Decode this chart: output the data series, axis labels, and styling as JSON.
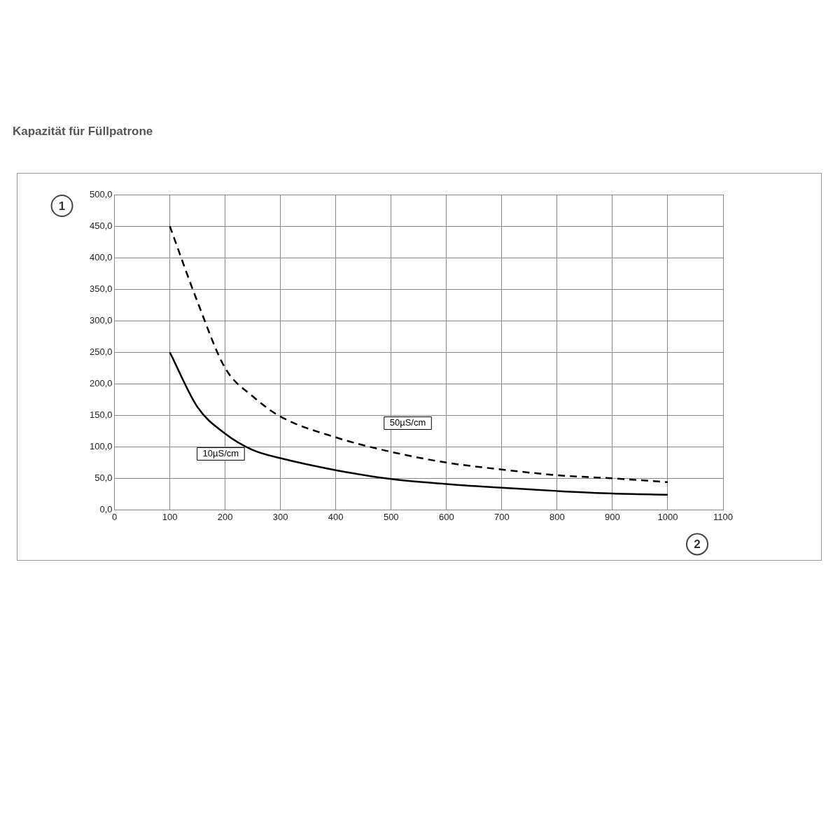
{
  "chart_data": {
    "type": "line",
    "title": "Kapazität für Füllpatrone",
    "ylabel": "1",
    "xlabel": "2",
    "xlim": [
      0,
      1100
    ],
    "xticks": [
      0,
      100,
      200,
      300,
      400,
      500,
      600,
      700,
      800,
      900,
      1000,
      1100
    ],
    "ylim": [
      0,
      500
    ],
    "yticks": [
      {
        "value": 0,
        "label": "0,0"
      },
      {
        "value": 50,
        "label": "50,0"
      },
      {
        "value": 100,
        "label": "100,0"
      },
      {
        "value": 150,
        "label": "150,0"
      },
      {
        "value": 200,
        "label": "200,0"
      },
      {
        "value": 250,
        "label": "250,0"
      },
      {
        "value": 300,
        "label": "300,0"
      },
      {
        "value": 350,
        "label": "350,0"
      },
      {
        "value": 400,
        "label": "400,0"
      },
      {
        "value": 450,
        "label": "450,0"
      },
      {
        "value": 500,
        "label": "500,0"
      }
    ],
    "grid": true,
    "legend": false,
    "marker": "none",
    "series": [
      {
        "name": "10µS/cm",
        "color": "#000000",
        "line_style": "solid",
        "x": [
          100,
          150,
          200,
          250,
          300,
          400,
          500,
          600,
          700,
          800,
          900,
          1000
        ],
        "values": [
          250,
          163,
          121,
          95,
          82,
          63,
          49,
          41,
          35,
          30,
          26,
          24
        ]
      },
      {
        "name": "50µS/cm",
        "color": "#000000",
        "line_style": "dashed",
        "x": [
          100,
          150,
          200,
          250,
          300,
          400,
          500,
          600,
          700,
          800,
          900,
          1000
        ],
        "values": [
          450,
          330,
          225,
          180,
          148,
          115,
          92,
          75,
          64,
          55,
          50,
          44
        ]
      }
    ]
  }
}
